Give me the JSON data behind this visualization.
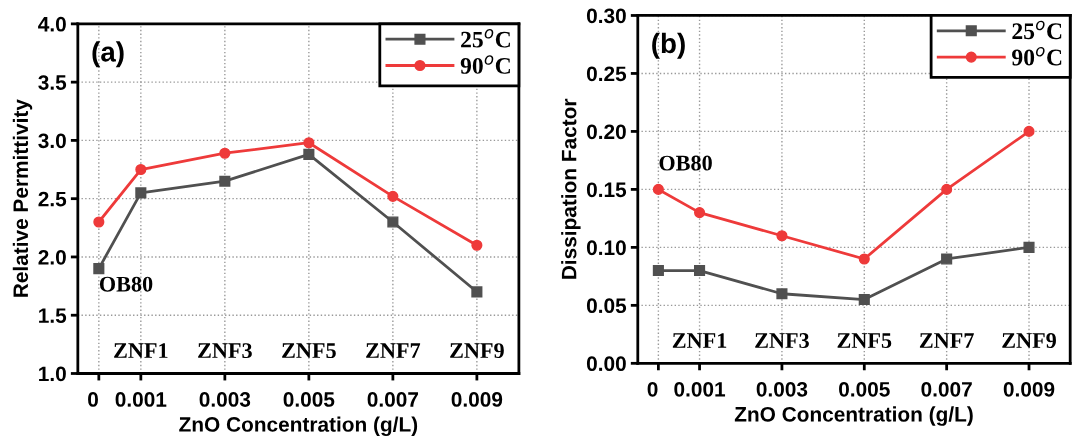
{
  "chart_data": [
    {
      "type": "line",
      "xlabel": "ZnO Concentration (g/L)",
      "ylabel": "Relative Permittivity",
      "x": [
        0,
        0.001,
        0.003,
        0.005,
        0.007,
        0.009
      ],
      "series": [
        {
          "name": "25$^{o}$C",
          "color": "#505050",
          "marker": "square",
          "values": [
            1.9,
            2.55,
            2.65,
            2.88,
            2.3,
            1.7
          ]
        },
        {
          "name": "90$^{o}$C",
          "color": "#ee3a3a",
          "marker": "circle",
          "values": [
            2.3,
            2.75,
            2.89,
            2.98,
            2.52,
            2.1
          ]
        }
      ],
      "xlim": [
        -0.0005,
        0.01
      ],
      "xticks": [
        0,
        0.001,
        0.003,
        0.005,
        0.007,
        0.009
      ],
      "ylim": [
        1.0,
        4.0
      ],
      "yticks": [
        {
          "value": 1.0,
          "label": "1.0"
        },
        1.5,
        {
          "value": 2.0,
          "label": "2.0"
        },
        2.5,
        {
          "value": 3.0,
          "label": "3.0"
        },
        3.5,
        {
          "value": 4.0,
          "label": "4.0"
        }
      ],
      "grid": true,
      "legend": "top right",
      "line_style": "solid",
      "annotations": [
        "(a)",
        "OB80",
        "ZNF1",
        "ZNF3",
        "ZNF5",
        "ZNF7",
        "ZNF9"
      ]
    },
    {
      "type": "line",
      "xlabel": "ZnO Concentration (g/L)",
      "ylabel": "Dissipation Factor",
      "x": [
        0,
        0.001,
        0.003,
        0.005,
        0.007,
        0.009
      ],
      "series": [
        {
          "name": "25$^{o}$C",
          "color": "#505050",
          "marker": "square",
          "values": [
            0.08,
            0.08,
            0.06,
            0.055,
            0.09,
            0.1
          ]
        },
        {
          "name": "90$^{o}$C",
          "color": "#ee3a3a",
          "marker": "circle",
          "values": [
            0.15,
            0.13,
            0.11,
            0.09,
            0.15,
            0.2
          ]
        }
      ],
      "xlim": [
        -0.0005,
        0.01
      ],
      "xticks": [
        0,
        0.001,
        0.003,
        0.005,
        0.007,
        0.009
      ],
      "ylim": [
        0.0,
        0.3
      ],
      "yticks": [
        {
          "value": 0.0,
          "label": "0.00"
        },
        {
          "value": 0.05,
          "label": "0.05"
        },
        {
          "value": 0.1,
          "label": "0.10"
        },
        {
          "value": 0.15,
          "label": "0.15"
        },
        {
          "value": 0.2,
          "label": "0.20"
        },
        {
          "value": 0.25,
          "label": "0.25"
        },
        {
          "value": 0.3,
          "label": "0.30"
        }
      ],
      "grid": true,
      "legend": "top right",
      "line_style": "solid",
      "annotations": [
        "(b)",
        "OB80",
        "ZNF1",
        "ZNF3",
        "ZNF5",
        "ZNF7",
        "ZNF9"
      ]
    }
  ]
}
